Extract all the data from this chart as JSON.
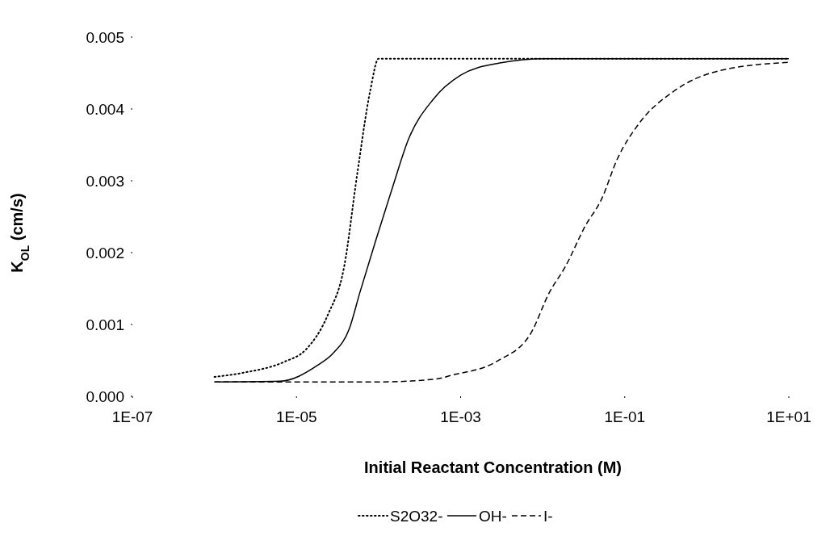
{
  "chart_data": {
    "type": "line",
    "xlabel": "Initial Reactant Concentration (M)",
    "ylabel": "K$_{OL}$ (cm/s)",
    "log": "x",
    "xlim": [
      1e-07,
      10
    ],
    "xticks": [
      {
        "value": 1e-07,
        "label": "1E-07"
      },
      {
        "value": 1e-05,
        "label": "1E-05"
      },
      {
        "value": 0.001,
        "label": "1E-03"
      },
      {
        "value": 0.1,
        "label": "1E-01"
      },
      {
        "value": 10,
        "label": "1E+01"
      }
    ],
    "ylim": [
      0,
      0.005
    ],
    "yticks": [
      {
        "value": 0,
        "label": "0.000"
      },
      {
        "value": 0.001,
        "label": "0.001"
      },
      {
        "value": 0.002,
        "label": "0.002"
      },
      {
        "value": 0.003,
        "label": "0.003"
      },
      {
        "value": 0.004,
        "label": "0.004"
      },
      {
        "value": 0.005,
        "label": "0.005"
      }
    ],
    "grid": false,
    "legend": "bottom",
    "series": [
      {
        "name": "S2O32-",
        "color": "#000000",
        "line_style": "dotted",
        "x": [
          1e-06,
          2.3e-06,
          7.1e-06,
          1.3e-05,
          2.4e-05,
          3.8e-05,
          5.5e-05,
          7.9e-05,
          0.0001,
          10
        ],
        "values": [
          0.00027,
          0.00033,
          0.00048,
          0.00065,
          0.00113,
          0.0018,
          0.0031,
          0.00425,
          0.0047,
          0.0047
        ]
      },
      {
        "name": "OH-",
        "color": "#000000",
        "line_style": "solid",
        "x": [
          1e-06,
          6.3e-06,
          1.8e-05,
          2.8e-05,
          4.4e-05,
          5.9e-05,
          9.3e-05,
          0.00015,
          0.00023,
          0.00046,
          0.001,
          0.003,
          0.011,
          10
        ],
        "values": [
          0.0002,
          0.00021,
          0.00043,
          0.0006,
          0.00094,
          0.00144,
          0.00218,
          0.00293,
          0.00357,
          0.00413,
          0.00447,
          0.00464,
          0.0047,
          0.0047
        ]
      },
      {
        "name": "I-",
        "color": "#000000",
        "line_style": "dashed",
        "x": [
          1e-06,
          0.0001,
          0.0005,
          0.00076,
          0.0028,
          0.0072,
          0.012,
          0.019,
          0.033,
          0.052,
          0.081,
          0.15,
          0.4,
          1.4,
          10
        ],
        "values": [
          0.0002,
          0.0002,
          0.00024,
          0.00029,
          0.00049,
          0.00088,
          0.00144,
          0.00181,
          0.00237,
          0.00274,
          0.0033,
          0.0038,
          0.00425,
          0.00453,
          0.00465
        ]
      }
    ]
  }
}
